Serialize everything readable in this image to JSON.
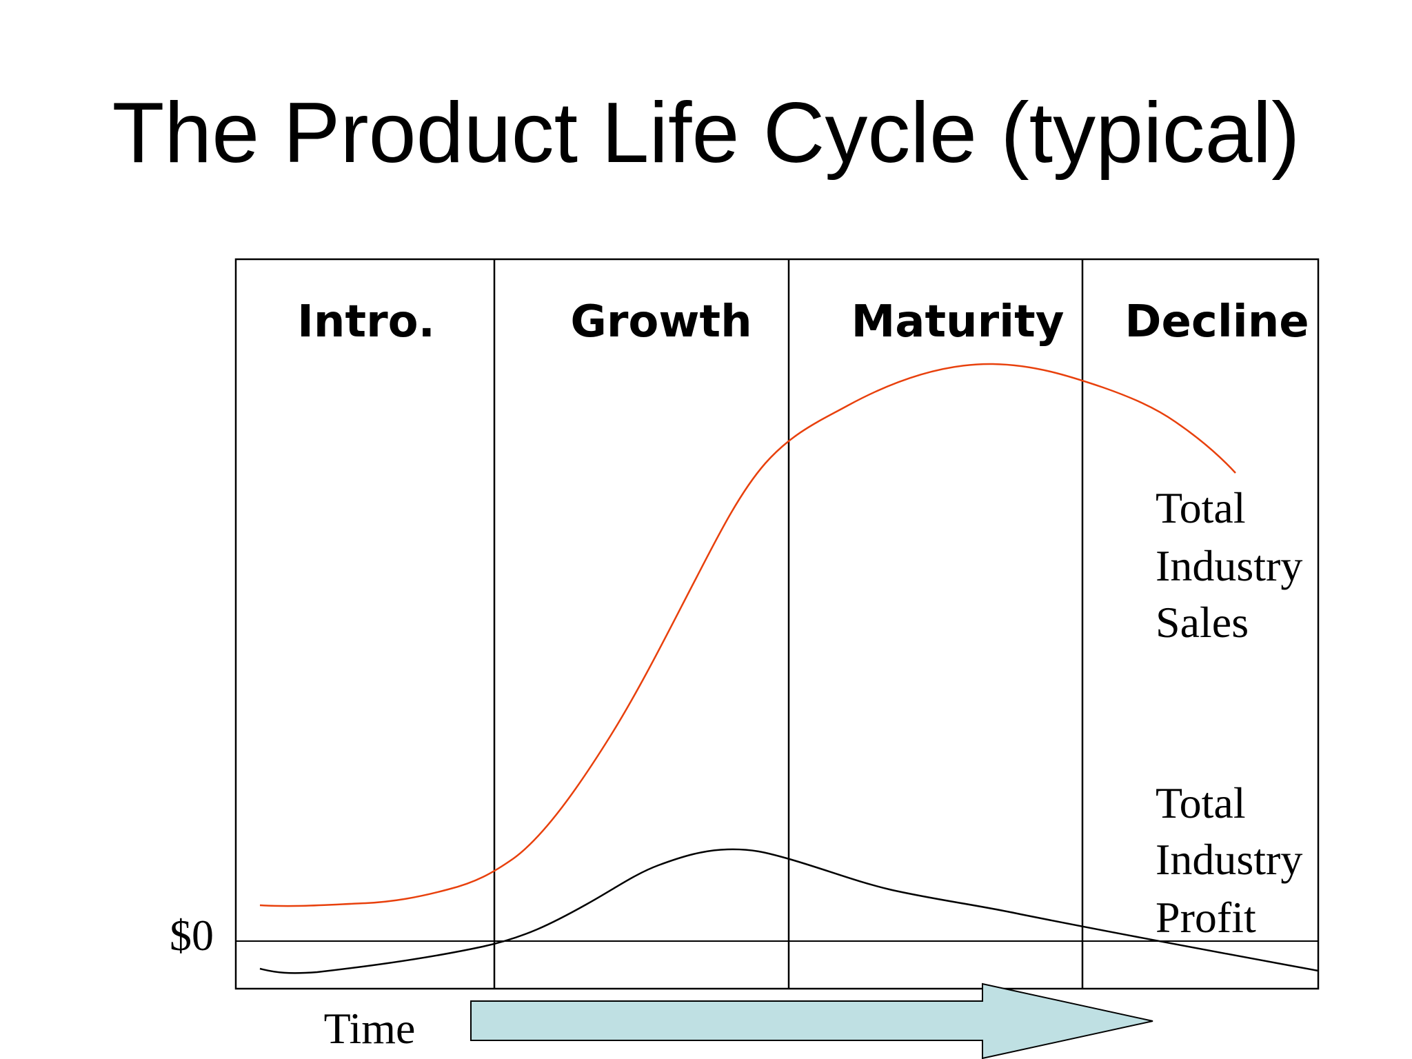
{
  "title": "The Product Life Cycle (typical)",
  "stages": [
    "Intro.",
    "Growth",
    "Maturity",
    "Decline"
  ],
  "curve_labels": {
    "sales": [
      "Total",
      "Industry",
      "Sales"
    ],
    "profit": [
      "Total",
      "Industry",
      "Profit"
    ]
  },
  "zero_label": "$0",
  "time_label": "Time",
  "colors": {
    "sales_curve": "#E8400C",
    "profit_curve": "#000000",
    "time_arrow_fill": "#BFE0E3",
    "frame": "#000000"
  },
  "icons": {
    "time_arrow": "right-arrow-icon"
  }
}
